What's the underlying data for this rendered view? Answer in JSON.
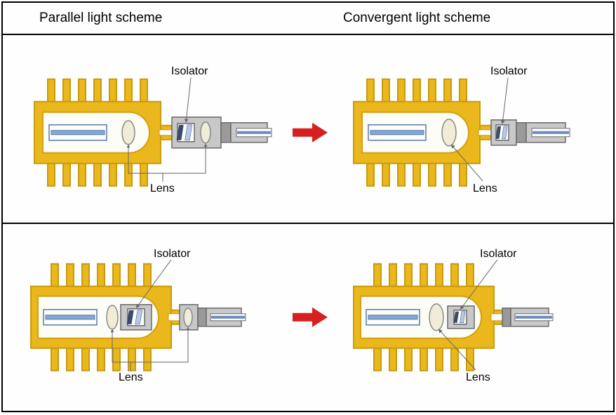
{
  "header": {
    "left": "Parallel light scheme",
    "right": "Convergent light scheme"
  },
  "labels": {
    "isolator": "Isolator",
    "lens": "Lens"
  },
  "colors": {
    "gold": "#eab81c",
    "goldStroke": "#c89a0e",
    "goldInnerStroke": "#d4a012",
    "chipBlue": "#82a7d6",
    "chipDark": "#5a7aa8",
    "lensFill": "#f0ecd8",
    "lensStroke": "#888",
    "gray": "#c8c8c8",
    "grayDark": "#9a9a9a",
    "grayStroke": "#6a6a6a",
    "isoDark": "#3a4a68",
    "isoLight": "#b8c8e8",
    "whiteFill": "#fdfdf8",
    "arrowRed": "#d62020",
    "fiberBlue": "#6a8cc4",
    "pointer": "#666"
  },
  "geometry": {
    "pinCount": 7,
    "pinW": 10,
    "pinH": 32,
    "pinGap": 22
  }
}
